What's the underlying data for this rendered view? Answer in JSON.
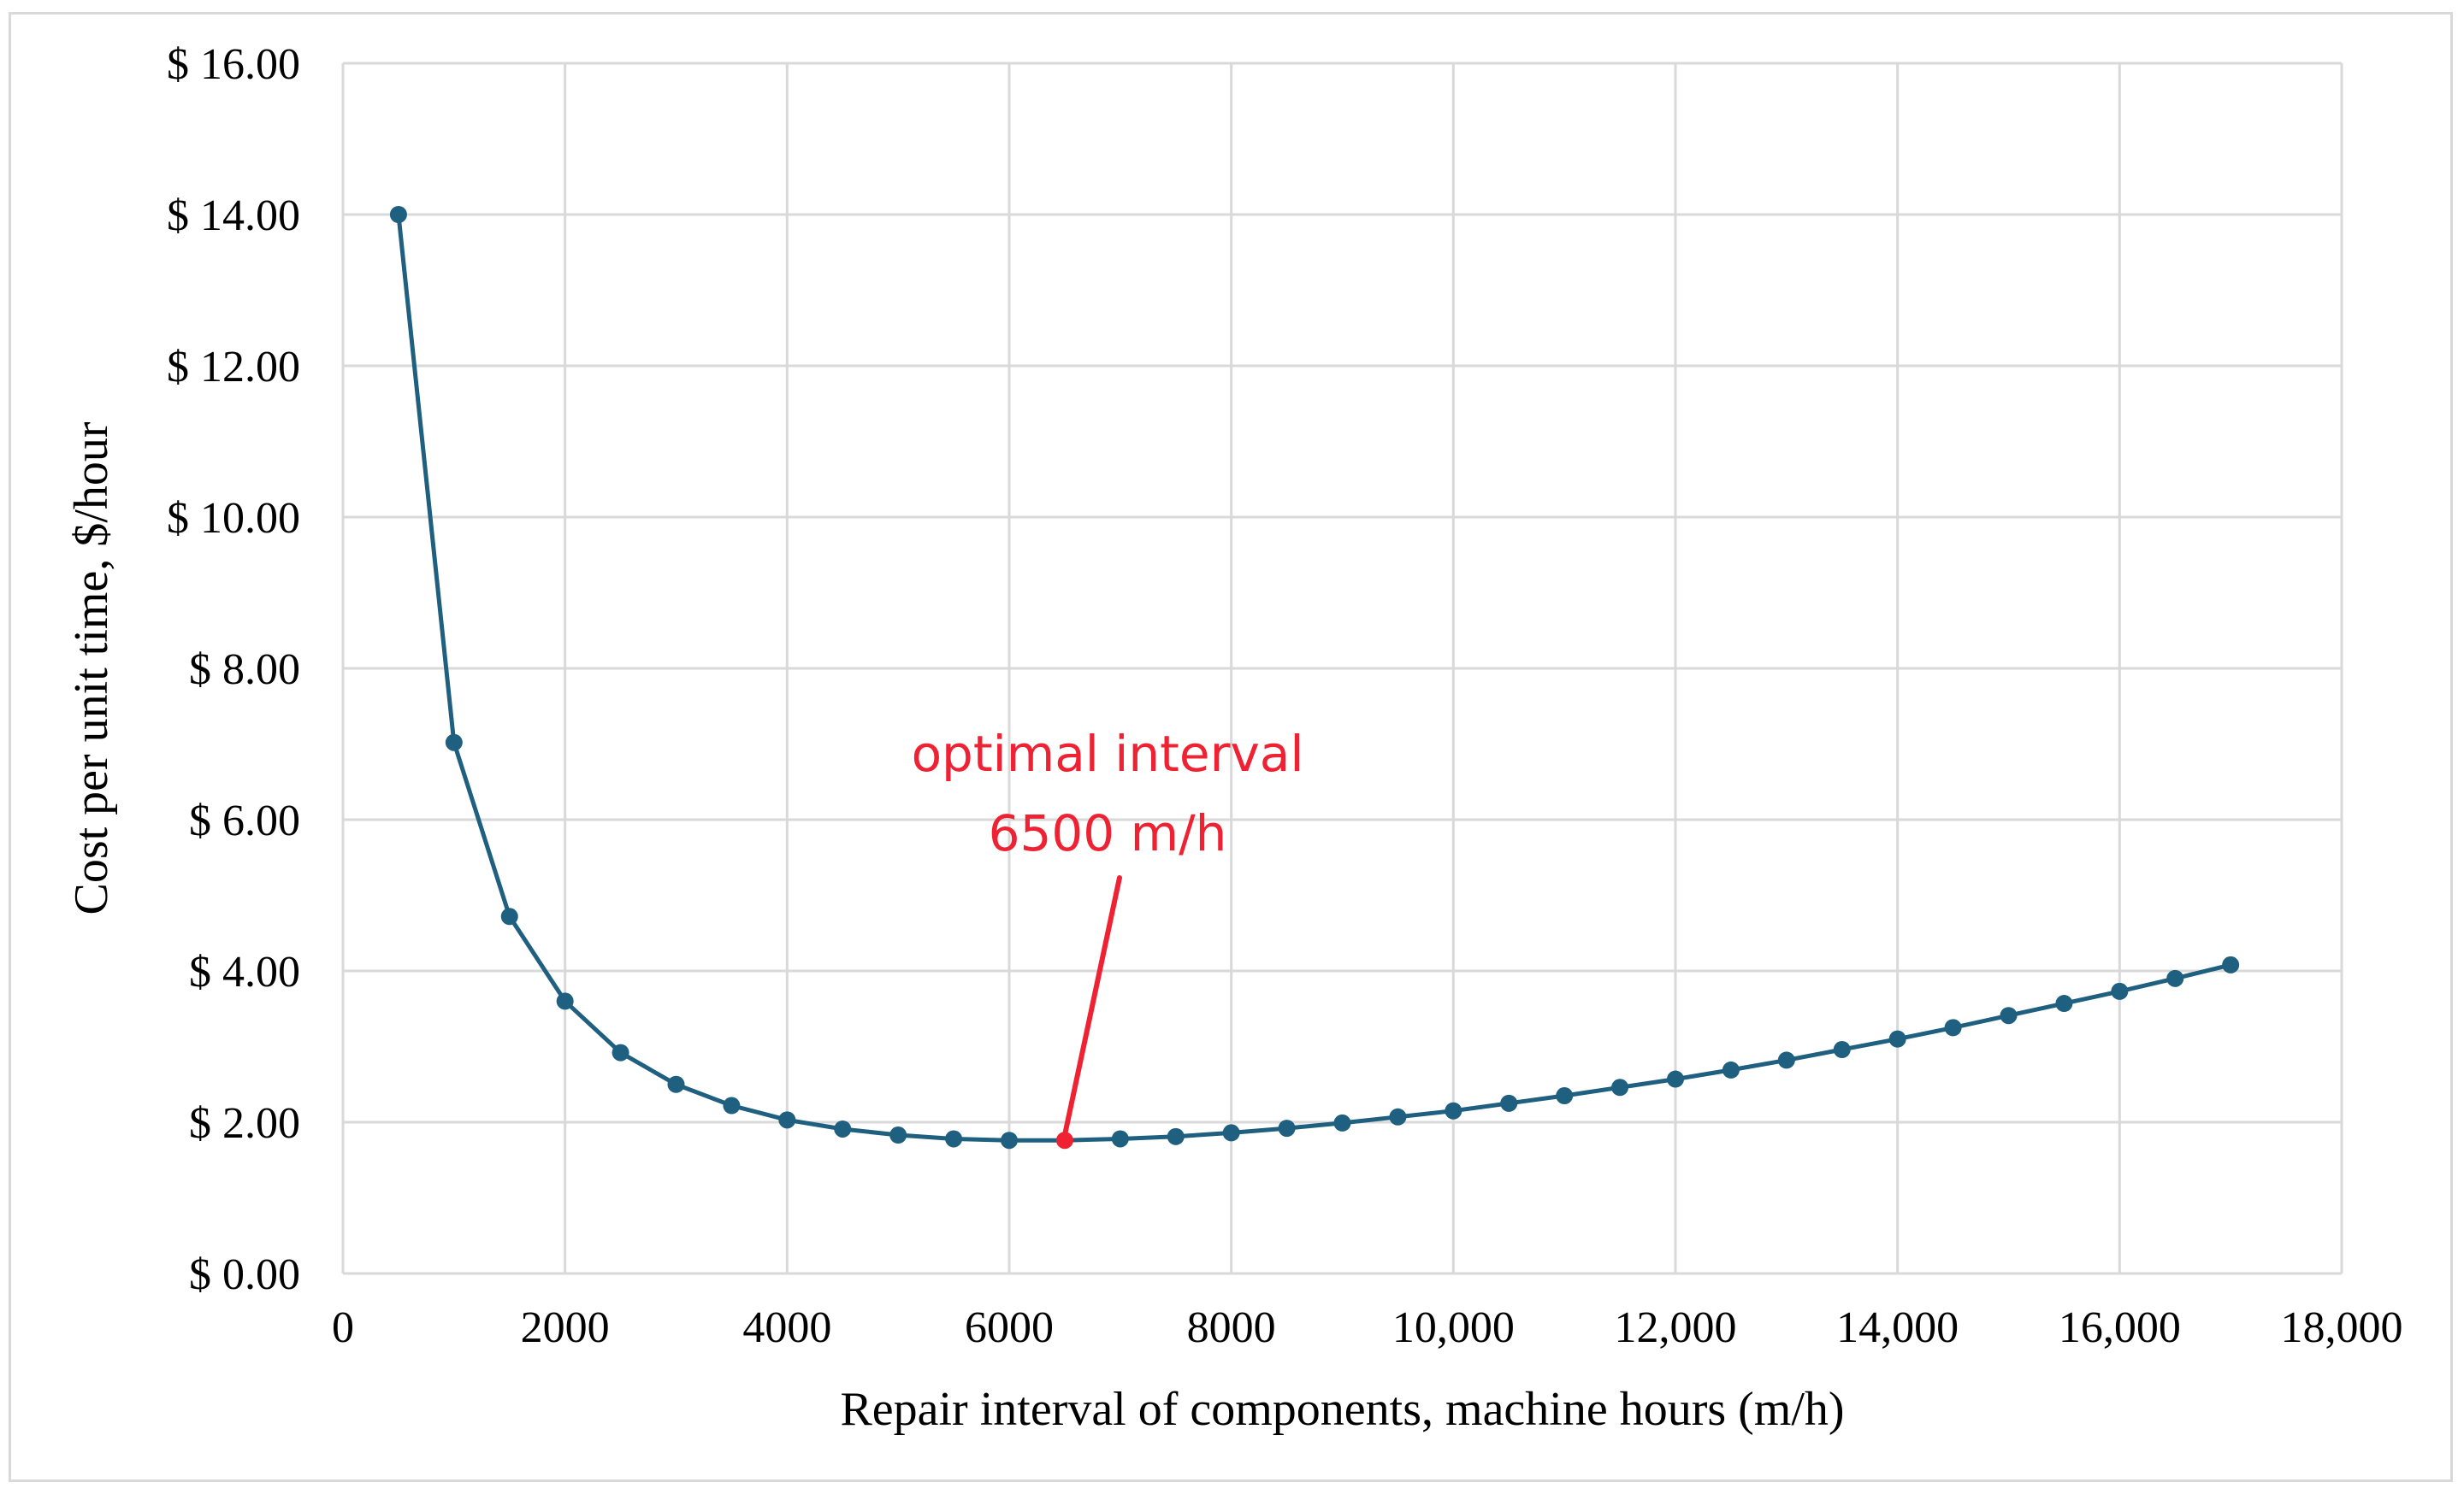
{
  "chart_data": {
    "type": "line",
    "title": "",
    "xlabel": "Repair interval of components, machine hours (m/h)",
    "ylabel": "Cost per unit time, $/hour",
    "xlim": [
      0,
      18000
    ],
    "ylim": [
      0,
      16
    ],
    "grid": true,
    "x_ticks": [
      0,
      2000,
      4000,
      6000,
      8000,
      10000,
      12000,
      14000,
      16000,
      18000
    ],
    "x_tick_labels": [
      "0",
      "2000",
      "4000",
      "6000",
      "8000",
      "10,000",
      "12,000",
      "14,000",
      "16,000",
      "18,000"
    ],
    "y_ticks": [
      0,
      2,
      4,
      6,
      8,
      10,
      12,
      14,
      16
    ],
    "y_tick_labels": [
      "$ 0.00",
      "$ 2.00",
      "$ 4.00",
      "$ 6.00",
      "$ 8.00",
      "$ 10.00",
      "$ 12.00",
      "$ 14.00",
      "$ 16.00"
    ],
    "series": [
      {
        "color": "#1f5f7f",
        "x": [
          500,
          1000,
          1500,
          2000,
          2500,
          3000,
          3500,
          4000,
          4500,
          5000,
          5500,
          6000,
          6500,
          7000,
          7500,
          8000,
          8500,
          9000,
          9500,
          10000,
          10500,
          11000,
          11500,
          12000,
          12500,
          13000,
          13500,
          14000,
          14500,
          15000,
          15500,
          16000,
          16500,
          17000
        ],
        "y": [
          14.0,
          7.02,
          4.72,
          3.6,
          2.92,
          2.5,
          2.22,
          2.03,
          1.91,
          1.83,
          1.78,
          1.76,
          1.76,
          1.78,
          1.81,
          1.86,
          1.92,
          1.99,
          2.07,
          2.15,
          2.25,
          2.35,
          2.46,
          2.57,
          2.69,
          2.82,
          2.96,
          3.1,
          3.25,
          3.41,
          3.57,
          3.73,
          3.9,
          4.08
        ]
      }
    ],
    "annotation": {
      "lines": [
        "optimal interval",
        "6500 m/h"
      ],
      "x": 6500,
      "y": 1.76,
      "color": "#ee2233"
    }
  }
}
